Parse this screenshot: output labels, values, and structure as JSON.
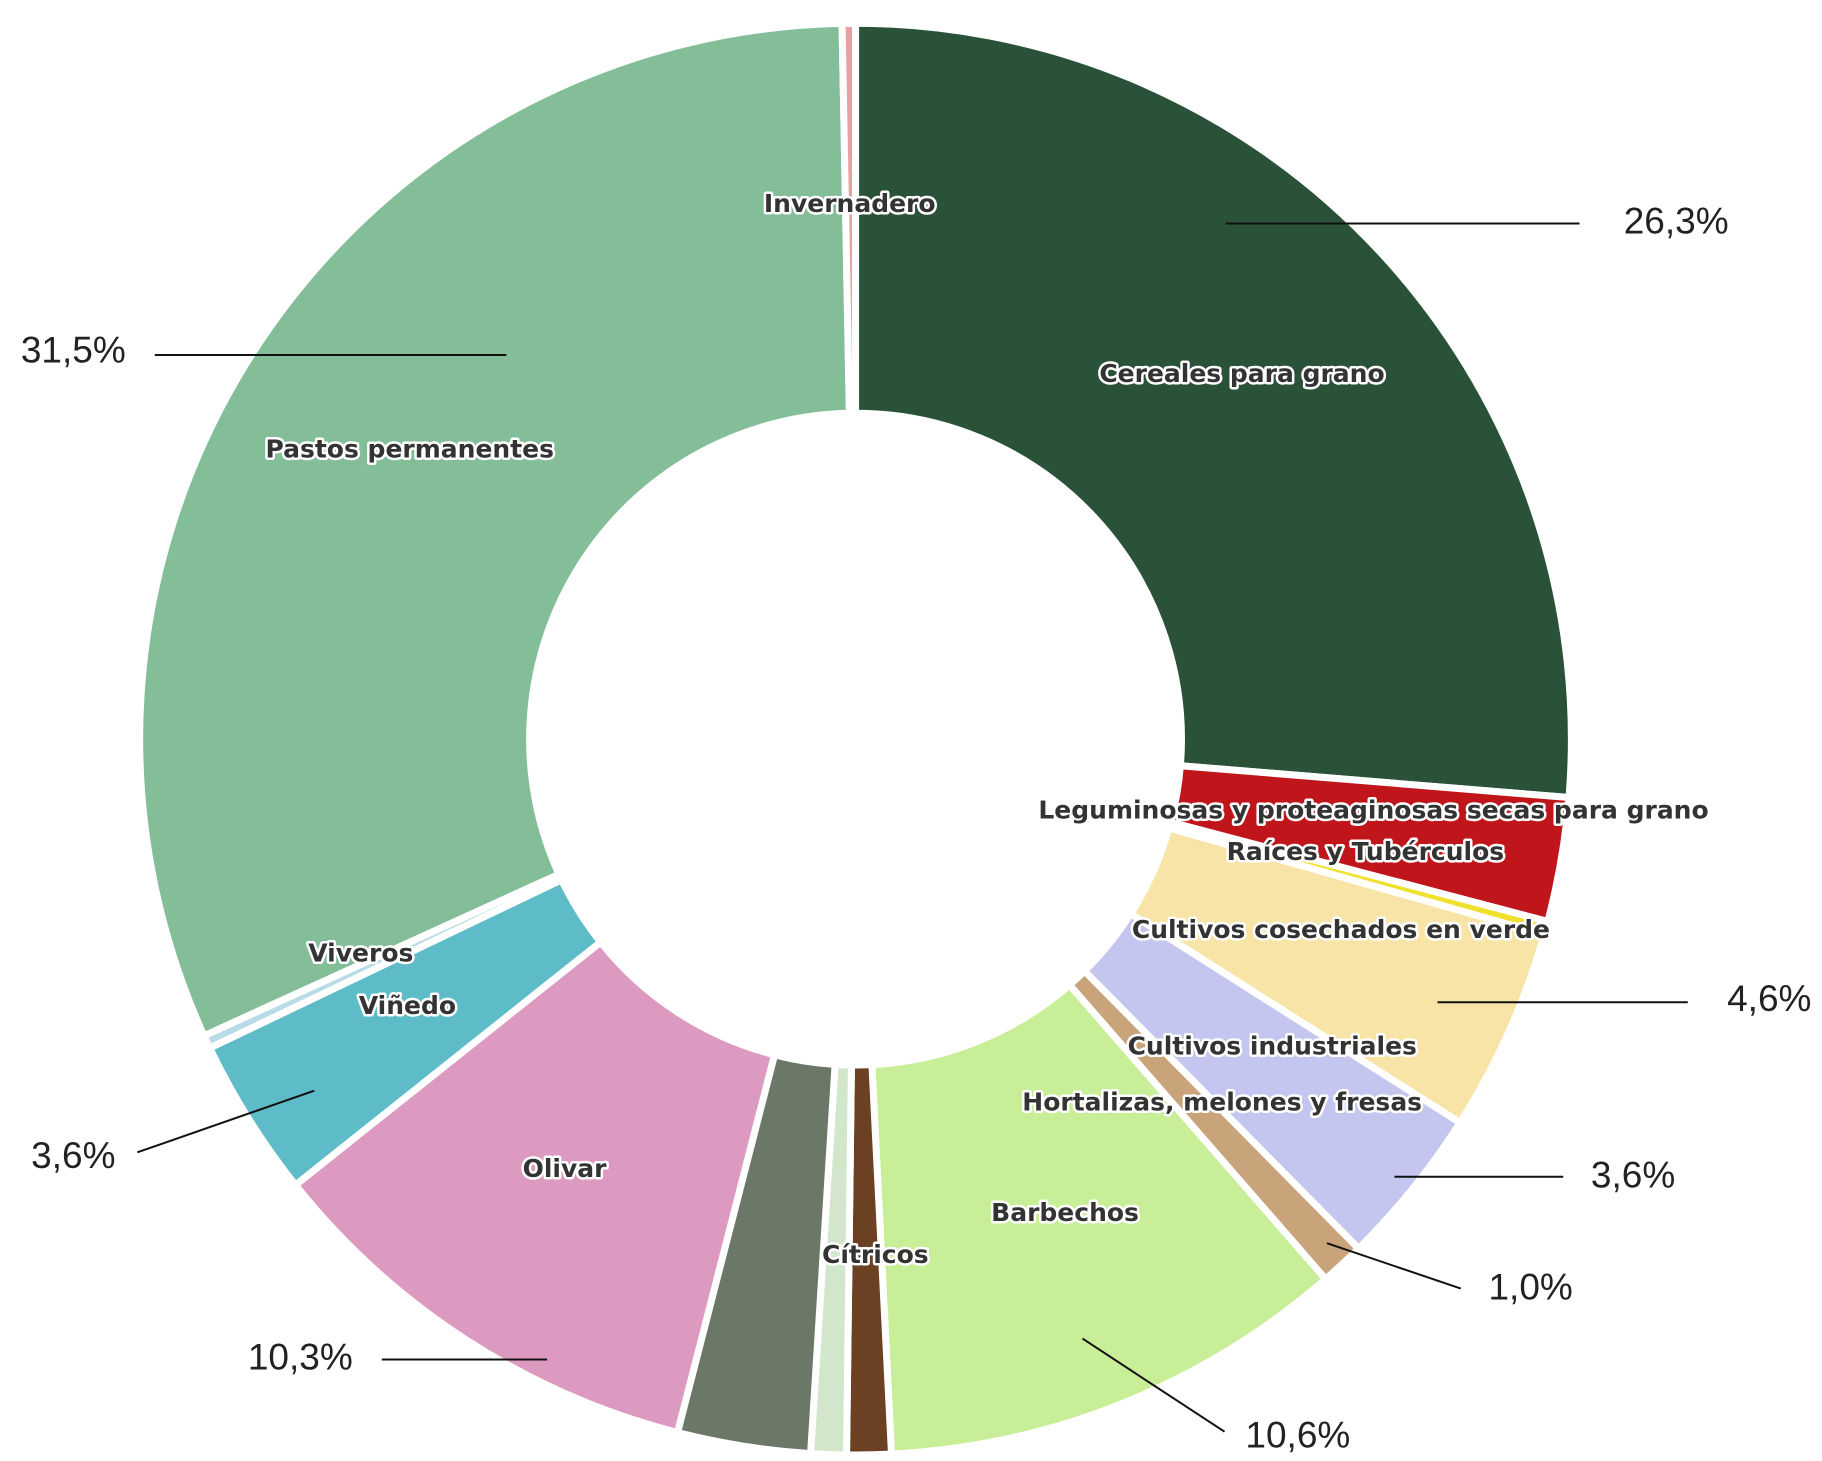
{
  "chart_data": {
    "type": "donut",
    "categories": [
      "Cereales para grano",
      "Leguminosas y proteaginosas secas para grano",
      "Raíces y Tubérculos",
      "Cultivos cosechados en verde",
      "Cultivos industriales",
      "Hortalizas, melones y fresas",
      "Barbechos",
      null,
      "Cítricos",
      null,
      "Olivar",
      "Viñedo",
      "Viveros",
      "Pastos permanentes",
      "Invernadero"
    ],
    "values": [
      26.3,
      2.8,
      0.3,
      4.6,
      3.6,
      1.0,
      10.6,
      1.0,
      0.8,
      3.0,
      10.3,
      3.6,
      0.3,
      31.5,
      0.3
    ],
    "value_labels": [
      "26,3%",
      null,
      null,
      "4,6%",
      "3,6%",
      "1,0%",
      "10,6%",
      null,
      null,
      null,
      "10,3%",
      "3,6%",
      null,
      "31,5%",
      null
    ],
    "colors": [
      "#2a5238",
      "#c0161b",
      "#f0e030",
      "#f8e4a6",
      "#c4c6f0",
      "#c9a47a",
      "#c8ee98",
      "#6b4023",
      "#d2e6cc",
      "#6b7868",
      "#dd9ac0",
      "#5dbcc8",
      "#b8dbe8",
      "#84be98",
      "#e8a0a0"
    ]
  }
}
